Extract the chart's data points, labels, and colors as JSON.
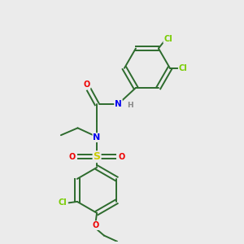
{
  "bg_color": "#ebebeb",
  "colors": {
    "bond": "#2d6b2d",
    "N": "#0000ee",
    "O": "#ee0000",
    "S": "#cccc00",
    "Cl": "#77cc00",
    "H": "#888888"
  },
  "bond_lw": 1.4,
  "font_size": 7.0,
  "fig_size": [
    3.0,
    3.0
  ],
  "dpi": 100,
  "xlim": [
    0,
    10
  ],
  "ylim": [
    0,
    10
  ]
}
